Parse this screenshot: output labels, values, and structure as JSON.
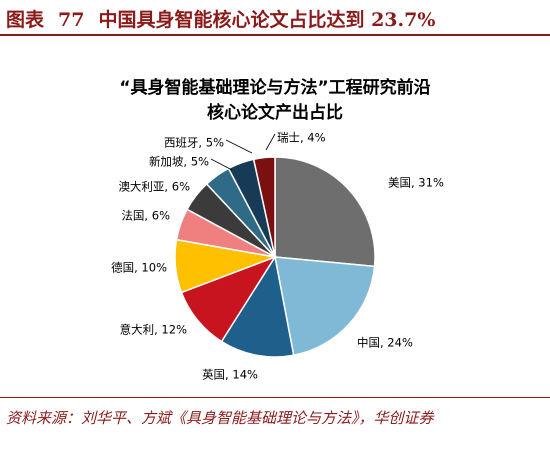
{
  "figure": {
    "label": "图表",
    "number": "77",
    "title": "中国具身智能核心论文占比达到 23.7%"
  },
  "source": "资料来源：刘华平、方斌《具身智能基础理论与方法》，华创证券",
  "chart_data": {
    "type": "pie",
    "title_lines": [
      "“具身智能基础理论与方法”工程研究前沿",
      "核心论文产出占比"
    ],
    "slices": [
      {
        "label": "美国, 31%",
        "value": 31,
        "color": "#6E6E6E"
      },
      {
        "label": "中国, 24%",
        "value": 24,
        "color": "#7FB9D6"
      },
      {
        "label": "英国, 14%",
        "value": 14,
        "color": "#1F5F8B"
      },
      {
        "label": "意大利, 12%",
        "value": 12,
        "color": "#C8141E"
      },
      {
        "label": "德国, 10%",
        "value": 10,
        "color": "#FFC000"
      },
      {
        "label": "法国, 6%",
        "value": 6,
        "color": "#F08080"
      },
      {
        "label": "澳大利亚, 6%",
        "value": 6,
        "color": "#3B3B3B"
      },
      {
        "label": "新加坡, 5%",
        "value": 5,
        "color": "#2F6A86"
      },
      {
        "label": "西班牙, 5%",
        "value": 5,
        "color": "#173A56"
      },
      {
        "label": "瑞士, 4%",
        "value": 4,
        "color": "#7A1010"
      }
    ],
    "start": "12 o'clock",
    "direction": "clockwise",
    "legend": "none"
  }
}
